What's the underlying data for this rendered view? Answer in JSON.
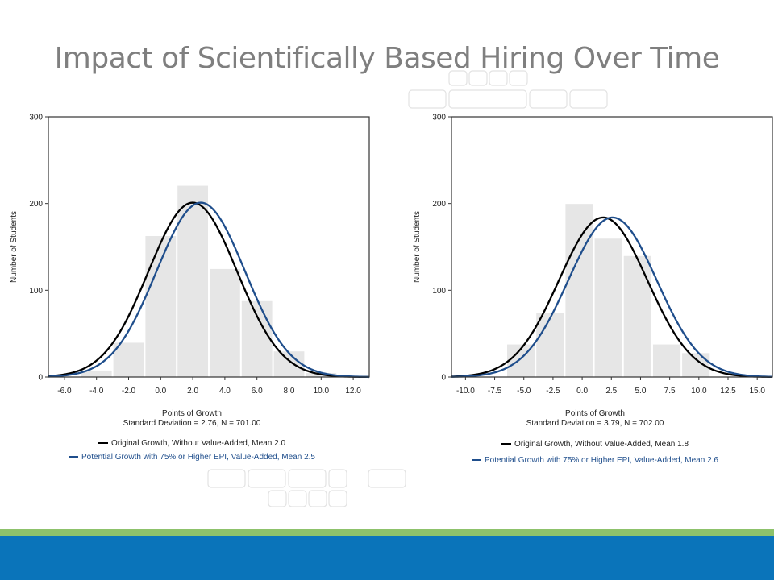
{
  "title": "Impact of Scientifically Based Hiring Over Time",
  "colors": {
    "title": "#7f7f7f",
    "bar": "#e6e6e6",
    "curve_original": "#000000",
    "curve_potential": "#1f4e8c",
    "footer_green": "#8dc26b",
    "footer_blue": "#0a74ba",
    "deco": "#dcdcdc"
  },
  "chart_data": [
    {
      "type": "bar",
      "ylabel": "Number of Students",
      "xlabel": "Points of Growth",
      "subtitle": "Standard Deviation = 2.76, N = 701.00",
      "xlim": [
        -7.0,
        13.0
      ],
      "ylim": [
        0,
        300
      ],
      "xticks": [
        -6.0,
        -4.0,
        -2.0,
        0.0,
        2.0,
        4.0,
        6.0,
        8.0,
        10.0,
        12.0
      ],
      "xtick_labels": [
        "-6.0",
        "-4.0",
        "-2.0",
        "0.0",
        "2.0",
        "4.0",
        "6.0",
        "8.0",
        "10.0",
        "12.0"
      ],
      "yticks": [
        0,
        100,
        200,
        300
      ],
      "ytick_labels": [
        "0",
        "100",
        "200",
        "300"
      ],
      "bins": [
        {
          "x0": -5.0,
          "x1": -3.0,
          "value": 8
        },
        {
          "x0": -3.0,
          "x1": -1.0,
          "value": 40
        },
        {
          "x0": -1.0,
          "x1": 1.0,
          "value": 163
        },
        {
          "x0": 1.0,
          "x1": 3.0,
          "value": 221
        },
        {
          "x0": 3.0,
          "x1": 5.0,
          "value": 125
        },
        {
          "x0": 5.0,
          "x1": 7.0,
          "value": 88
        },
        {
          "x0": 7.0,
          "x1": 9.0,
          "value": 30
        },
        {
          "x0": 9.0,
          "x1": 11.0,
          "value": 5
        }
      ],
      "series": [
        {
          "name": "Original Growth, Without Value-Added, Mean 2.0",
          "mean": 2.0,
          "peak": 201,
          "sd": 2.76,
          "color": "#000000"
        },
        {
          "name": "Potential Growth with 75% or Higher EPI, Value-Added, Mean 2.5",
          "mean": 2.5,
          "peak": 201,
          "sd": 2.76,
          "color": "#1f4e8c"
        }
      ],
      "legend": [
        "Original Growth, Without Value-Added, Mean 2.0",
        "Potential Growth with 75% or Higher EPI, Value-Added, Mean 2.5"
      ]
    },
    {
      "type": "bar",
      "ylabel": "Number of Students",
      "xlabel": "Points of Growth",
      "subtitle": "Standard Deviation = 3.79, N = 702.00",
      "xlim": [
        -11.2,
        16.3
      ],
      "ylim": [
        0,
        300
      ],
      "xticks": [
        -10.0,
        -7.5,
        -5.0,
        -2.5,
        0.0,
        2.5,
        5.0,
        7.5,
        10.0,
        12.5,
        15.0
      ],
      "xtick_labels": [
        "-10.0",
        "-7.5",
        "-5.0",
        "-2.5",
        "0.0",
        "2.5",
        "5.0",
        "7.5",
        "10.0",
        "12.5",
        "15.0"
      ],
      "yticks": [
        0,
        100,
        200,
        300
      ],
      "ytick_labels": [
        "0",
        "100",
        "200",
        "300"
      ],
      "bins": [
        {
          "x0": -6.5,
          "x1": -4.0,
          "value": 38
        },
        {
          "x0": -4.0,
          "x1": -1.5,
          "value": 74
        },
        {
          "x0": -1.5,
          "x1": 1.0,
          "value": 200
        },
        {
          "x0": 1.0,
          "x1": 3.5,
          "value": 160
        },
        {
          "x0": 3.5,
          "x1": 6.0,
          "value": 140
        },
        {
          "x0": 6.0,
          "x1": 8.5,
          "value": 38
        },
        {
          "x0": 8.5,
          "x1": 11.0,
          "value": 28
        }
      ],
      "series": [
        {
          "name": "Original Growth, Without Value-Added, Mean 1.8",
          "mean": 1.8,
          "peak": 184,
          "sd": 3.79,
          "color": "#000000"
        },
        {
          "name": "Potential Growth with 75% or Higher EPI, Value-Added, Mean 2.6",
          "mean": 2.6,
          "peak": 184,
          "sd": 3.79,
          "color": "#1f4e8c"
        }
      ],
      "legend": [
        "Original Growth, Without Value-Added, Mean 1.8",
        "Potential Growth with 75% or Higher EPI, Value-Added, Mean 2.6"
      ]
    }
  ]
}
